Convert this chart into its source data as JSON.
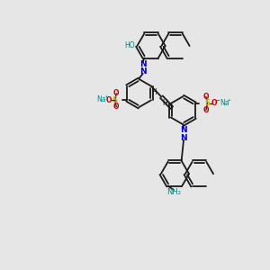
{
  "bg_color": "#e6e6e6",
  "bond_color": "#1a1a1a",
  "bond_lw": 1.3,
  "N_color": "#0000cc",
  "S_color": "#ccaa00",
  "O_color": "#cc0000",
  "Na_color": "#008888",
  "HO_color": "#008888",
  "NH2_color": "#008888",
  "fig_w": 3.0,
  "fig_h": 3.0,
  "dpi": 100,
  "xlim": [
    0,
    10
  ],
  "ylim": [
    0,
    10
  ]
}
